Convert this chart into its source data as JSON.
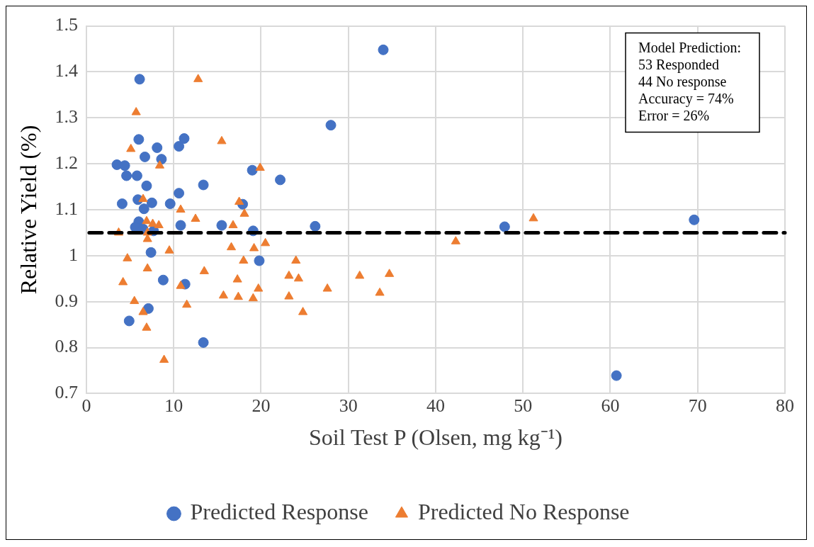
{
  "chart_data": {
    "type": "scatter",
    "xlabel": "Soil Test P (Olsen, mg kg⁻¹)",
    "ylabel": "Relative Yield (%)",
    "xlim": [
      0,
      80
    ],
    "xticks": [
      0,
      10,
      20,
      30,
      40,
      50,
      60,
      70,
      80
    ],
    "ylim": [
      0.7,
      1.5
    ],
    "yticks": [
      0.7,
      0.8,
      0.9,
      1,
      1.1,
      1.2,
      1.3,
      1.4,
      1.5
    ],
    "grid": true,
    "legend": "bottom",
    "annotations": [
      "Model Prediction:",
      "53 Responded",
      "44 No response",
      "Accuracy = 74%",
      "Error = 26%"
    ],
    "ref_lines": [
      {
        "axis": "y",
        "value": 1.05,
        "color": "#000000",
        "line_style": "dashed"
      }
    ],
    "series": [
      {
        "name": "Predicted Response",
        "color": "#4472c4",
        "marker": "circle",
        "x": [
          6.1,
          34.0,
          28.0,
          6.0,
          11.2,
          8.1,
          10.6,
          3.5,
          4.4,
          6.7,
          8.6,
          4.6,
          5.8,
          6.9,
          13.4,
          19.0,
          22.2,
          4.1,
          5.9,
          7.5,
          6.6,
          10.6,
          9.6,
          17.9,
          6.0,
          5.6,
          10.8,
          15.5,
          19.1,
          26.2,
          47.9,
          69.6,
          7.7,
          7.4,
          19.8,
          8.8,
          11.3,
          7.1,
          4.9,
          13.4,
          60.7,
          6.5
        ],
        "values": [
          1.384,
          1.448,
          1.284,
          1.253,
          1.255,
          1.235,
          1.238,
          1.198,
          1.196,
          1.215,
          1.21,
          1.174,
          1.174,
          1.152,
          1.154,
          1.186,
          1.165,
          1.113,
          1.122,
          1.115,
          1.102,
          1.136,
          1.113,
          1.112,
          1.074,
          1.062,
          1.066,
          1.066,
          1.054,
          1.064,
          1.063,
          1.078,
          1.054,
          1.007,
          0.989,
          0.947,
          0.938,
          0.885,
          0.858,
          0.811,
          0.739,
          1.058
        ]
      },
      {
        "name": "Predicted No Response",
        "color": "#ed7d31",
        "marker": "triangle",
        "x": [
          12.8,
          5.7,
          5.1,
          15.5,
          8.4,
          19.9,
          17.5,
          18.1,
          10.8,
          12.5,
          6.5,
          6.9,
          7.6,
          8.3,
          7.0,
          7.0,
          3.7,
          16.8,
          16.6,
          19.2,
          20.5,
          9.5,
          4.7,
          7.0,
          13.5,
          18.0,
          24.0,
          4.2,
          10.8,
          17.3,
          19.7,
          24.3,
          23.2,
          34.7,
          33.6,
          31.3,
          27.6,
          5.5,
          11.5,
          15.7,
          17.4,
          19.1,
          23.2,
          24.8,
          6.5,
          6.9,
          8.9,
          42.3,
          51.2
        ],
        "values": [
          1.384,
          1.312,
          1.232,
          1.249,
          1.196,
          1.191,
          1.117,
          1.091,
          1.1,
          1.08,
          1.123,
          1.075,
          1.069,
          1.066,
          1.05,
          1.036,
          1.05,
          1.066,
          1.018,
          1.016,
          1.027,
          1.011,
          0.994,
          0.972,
          0.966,
          0.989,
          0.989,
          0.942,
          0.934,
          0.948,
          0.928,
          0.95,
          0.956,
          0.96,
          0.919,
          0.956,
          0.928,
          0.901,
          0.893,
          0.913,
          0.91,
          0.907,
          0.911,
          0.877,
          0.877,
          0.843,
          0.773,
          1.031,
          1.081
        ]
      }
    ]
  }
}
